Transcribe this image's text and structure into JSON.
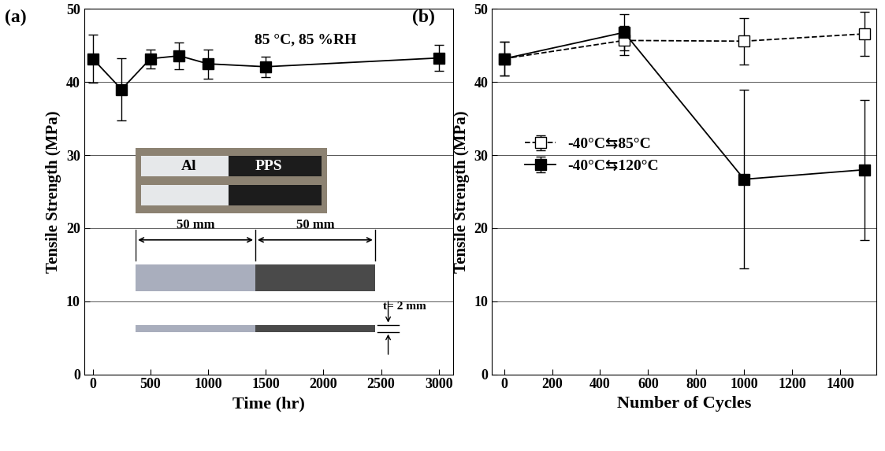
{
  "chart_data": [
    {
      "type": "line",
      "panel_label": "(a)",
      "x_label": "Time (hr)",
      "y_label": "Tensile Strength (MPa)",
      "annotations": [
        "85 °C, 85 %RH"
      ],
      "inset": {
        "labels": [
          "Al",
          "PPS"
        ],
        "dimensions": [
          "50 mm",
          "50 mm"
        ],
        "thickness": "t= 2 mm"
      },
      "x": [
        0,
        250,
        500,
        750,
        1000,
        1500,
        3000
      ],
      "values": [
        43.2,
        39.0,
        43.2,
        43.6,
        42.5,
        42.1,
        43.3
      ],
      "errors": [
        3.3,
        4.3,
        1.3,
        1.8,
        2.0,
        1.4,
        1.8
      ],
      "color": "#000000",
      "marker": "square",
      "line_style": "solid",
      "xlim": [
        -75,
        3125
      ],
      "xticks": [
        0,
        500,
        1000,
        1500,
        2000,
        2500,
        3000
      ],
      "ylim": [
        0,
        50
      ],
      "yticks": [
        0,
        10,
        20,
        30,
        40,
        50
      ],
      "grid": true
    },
    {
      "type": "line",
      "panel_label": "(b)",
      "x_label": "Number of Cycles",
      "y_label": "Tensile Strength (MPa)",
      "x": [
        0,
        500,
        1000,
        1500
      ],
      "series": [
        {
          "name": "-40°C⇆85°C",
          "color": "#000000",
          "marker": "open_square",
          "line_style": "dashed",
          "values": [
            43.2,
            45.7,
            45.6,
            46.6
          ],
          "errors": [
            2.3,
            2.0,
            3.2,
            3.0
          ]
        },
        {
          "name": "-40°C⇆120°C",
          "color": "#000000",
          "marker": "square",
          "line_style": "solid",
          "values": [
            43.2,
            46.8,
            26.7,
            28.0
          ],
          "errors": [
            2.3,
            2.5,
            12.2,
            9.6
          ]
        }
      ],
      "legend": "center left",
      "xlim": [
        -50,
        1550
      ],
      "xticks": [
        0,
        200,
        400,
        600,
        800,
        1000,
        1200,
        1400
      ],
      "ylim": [
        0,
        50
      ],
      "yticks": [
        0,
        10,
        20,
        30,
        40,
        50
      ],
      "grid": true
    }
  ]
}
